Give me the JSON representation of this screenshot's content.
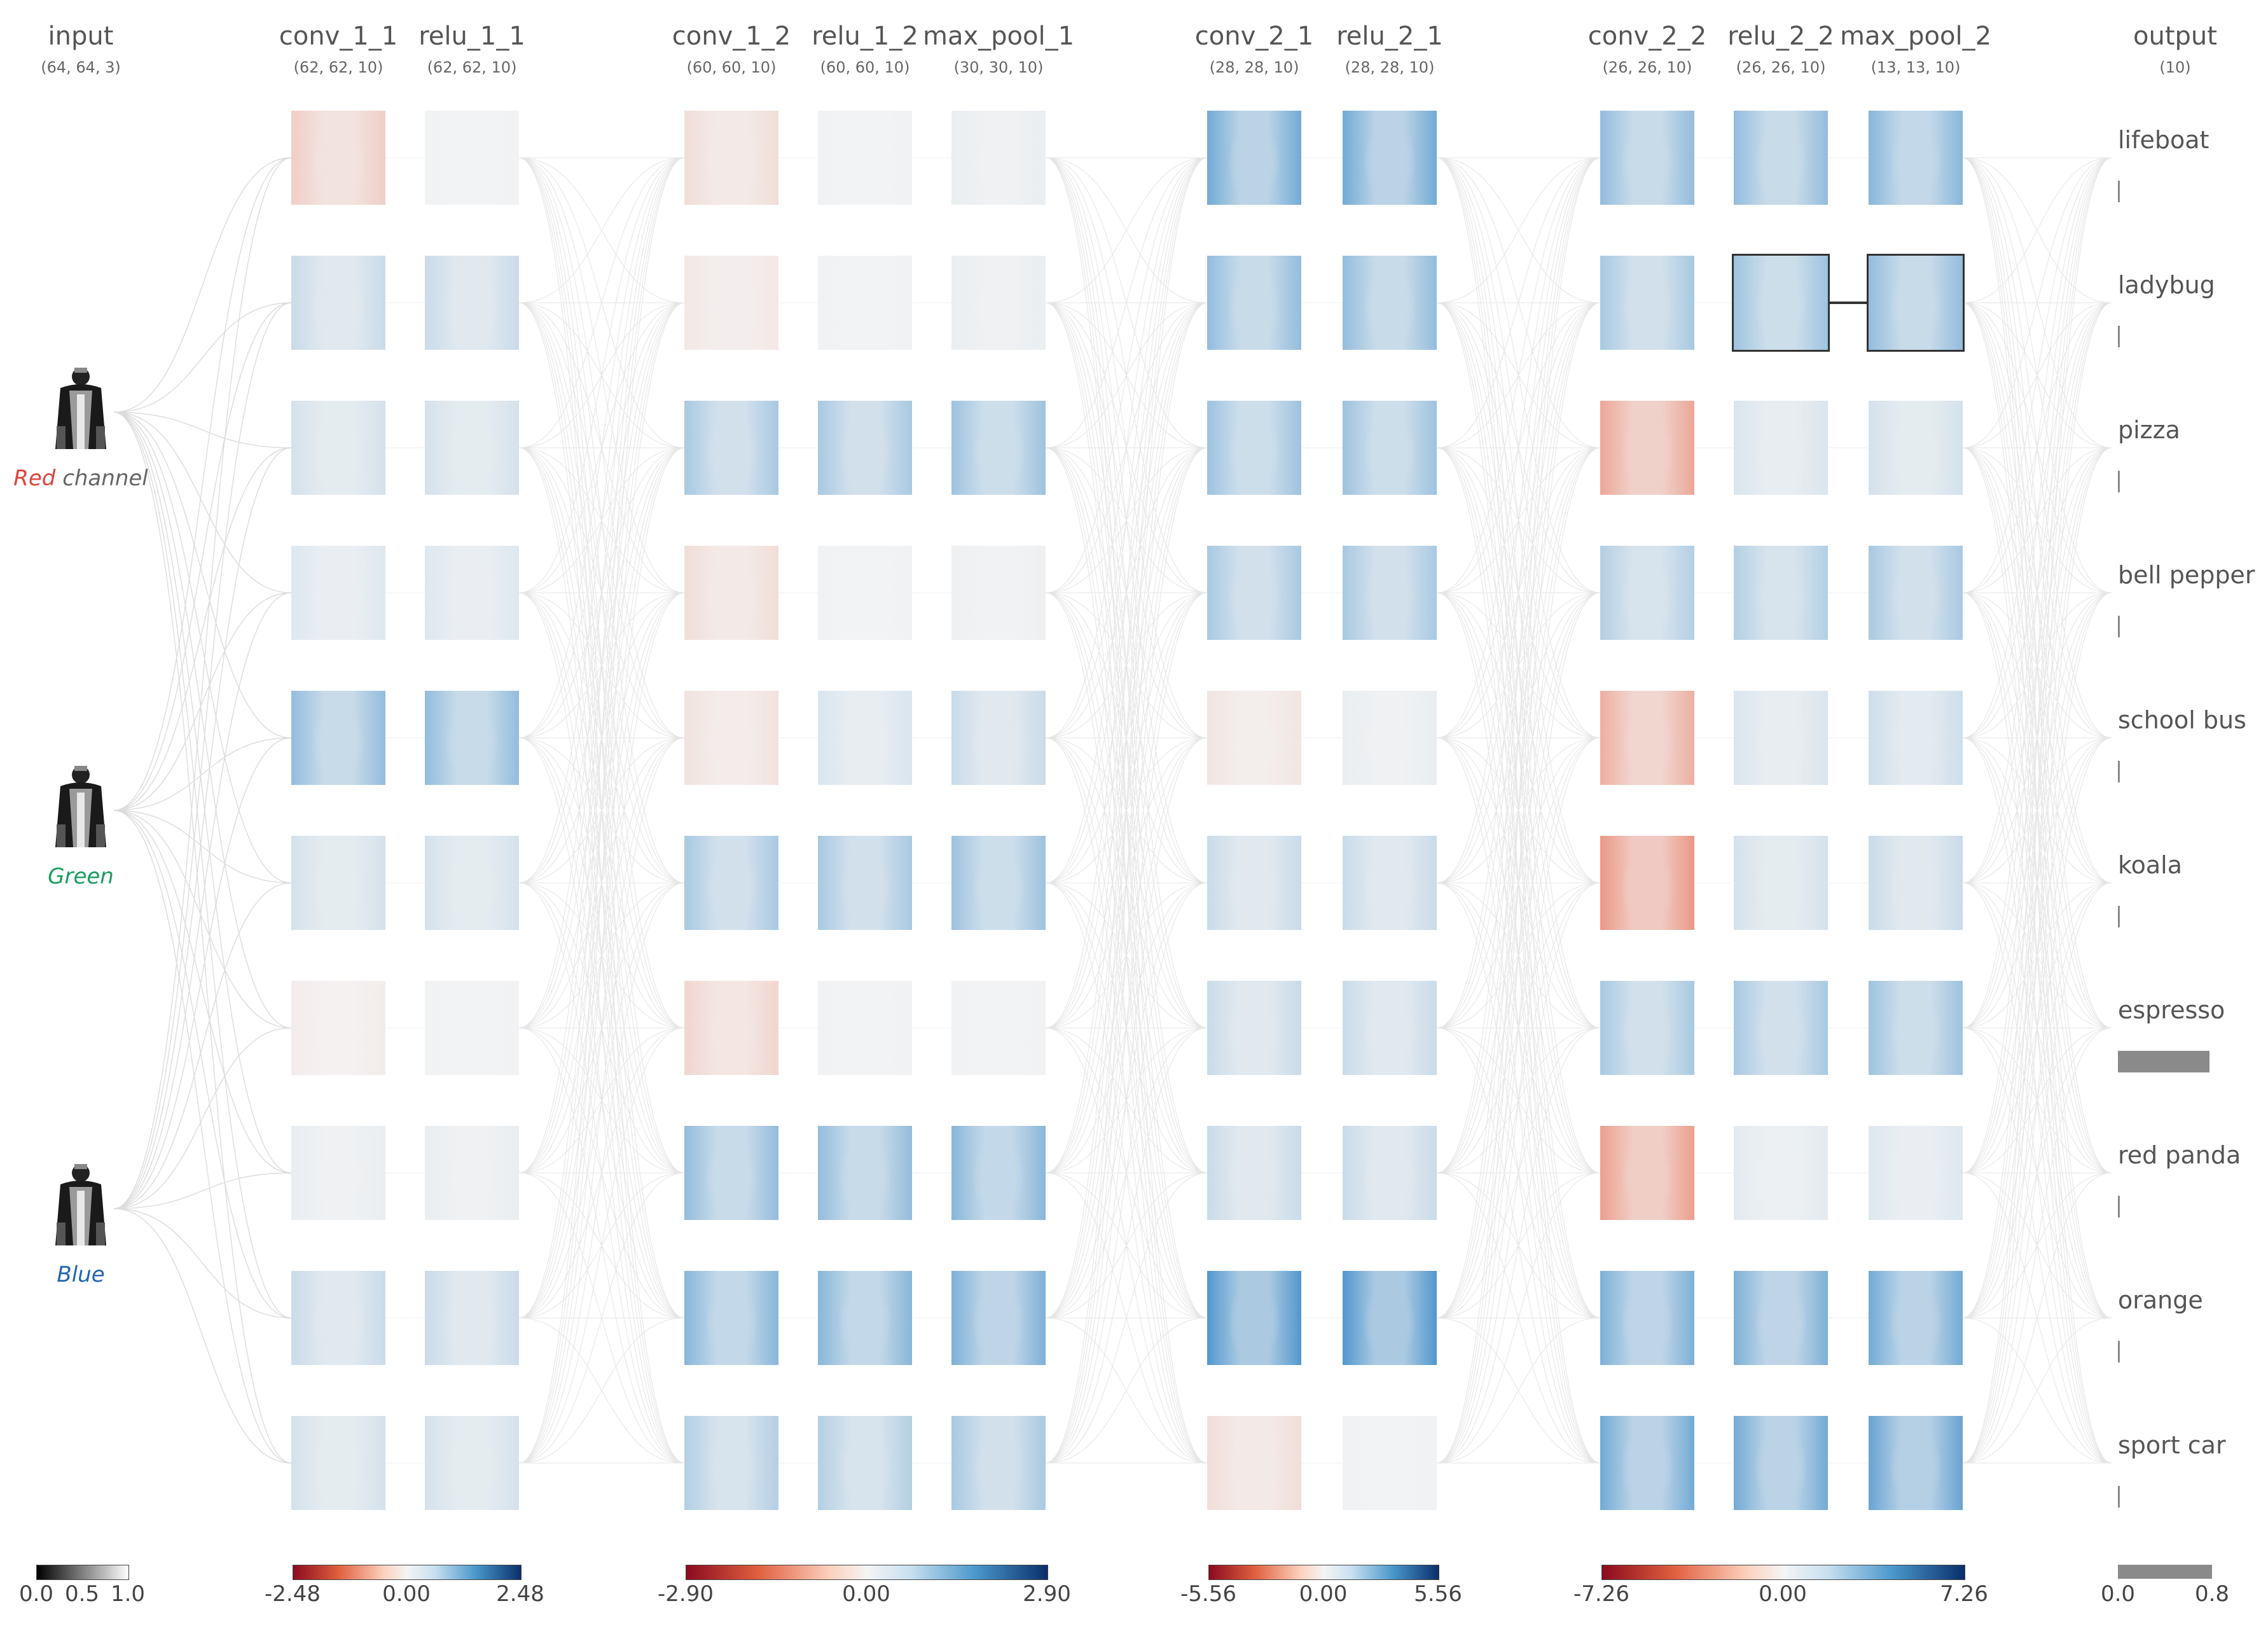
{
  "layers": [
    {
      "name": "input",
      "dim": "(64, 64, 3)"
    },
    {
      "name": "conv_1_1",
      "dim": "(62, 62, 10)"
    },
    {
      "name": "relu_1_1",
      "dim": "(62, 62, 10)"
    },
    {
      "name": "conv_1_2",
      "dim": "(60, 60, 10)"
    },
    {
      "name": "relu_1_2",
      "dim": "(60, 60, 10)"
    },
    {
      "name": "max_pool_1",
      "dim": "(30, 30, 10)"
    },
    {
      "name": "conv_2_1",
      "dim": "(28, 28, 10)"
    },
    {
      "name": "relu_2_1",
      "dim": "(28, 28, 10)"
    },
    {
      "name": "conv_2_2",
      "dim": "(26, 26, 10)"
    },
    {
      "name": "relu_2_2",
      "dim": "(26, 26, 10)"
    },
    {
      "name": "max_pool_2",
      "dim": "(13, 13, 10)"
    },
    {
      "name": "output",
      "dim": "(10)"
    }
  ],
  "input_channels": [
    {
      "label_prefix": "Red",
      "label_rest": " channel",
      "color": "#e0433c"
    },
    {
      "label_prefix": "Green",
      "label_rest": "",
      "color": "#1a9e5e"
    },
    {
      "label_prefix": "Blue",
      "label_rest": "",
      "color": "#2166ac"
    }
  ],
  "classes": [
    {
      "label": "lifeboat",
      "prob": 0.0
    },
    {
      "label": "ladybug",
      "prob": 0.0
    },
    {
      "label": "pizza",
      "prob": 0.01
    },
    {
      "label": "bell pepper",
      "prob": 0.0
    },
    {
      "label": "school bus",
      "prob": 0.01
    },
    {
      "label": "koala",
      "prob": 0.0
    },
    {
      "label": "espresso",
      "prob": 0.78
    },
    {
      "label": "red panda",
      "prob": 0.0
    },
    {
      "label": "orange",
      "prob": 0.0
    },
    {
      "label": "sport car",
      "prob": 0.0
    }
  ],
  "activations": {
    "conv_1_1": [
      -0.25,
      0.2,
      0.15,
      0.1,
      0.45,
      0.15,
      -0.05,
      0.05,
      0.2,
      0.15
    ],
    "relu_1_1": [
      0.02,
      0.2,
      0.15,
      0.1,
      0.45,
      0.15,
      0.02,
      0.05,
      0.2,
      0.15
    ],
    "conv_1_2": [
      -0.15,
      -0.08,
      0.35,
      -0.15,
      -0.12,
      0.35,
      -0.2,
      0.45,
      0.5,
      0.3
    ],
    "relu_1_2": [
      0.02,
      0.02,
      0.35,
      0.02,
      0.12,
      0.35,
      0.02,
      0.45,
      0.5,
      0.3
    ],
    "max_pool_1": [
      0.05,
      0.05,
      0.4,
      0.03,
      0.2,
      0.4,
      0.02,
      0.5,
      0.55,
      0.35
    ],
    "conv_2_1": [
      0.6,
      0.45,
      0.4,
      0.35,
      -0.1,
      0.2,
      0.2,
      0.2,
      0.75,
      -0.15
    ],
    "relu_2_1": [
      0.6,
      0.45,
      0.4,
      0.35,
      0.05,
      0.2,
      0.2,
      0.2,
      0.75,
      0.02
    ],
    "conv_2_2": [
      0.45,
      0.35,
      -0.5,
      0.3,
      -0.45,
      -0.6,
      0.35,
      -0.55,
      0.55,
      0.6
    ],
    "relu_2_2": [
      0.45,
      0.4,
      0.12,
      0.3,
      0.12,
      0.15,
      0.35,
      0.08,
      0.55,
      0.6
    ],
    "max_pool_2": [
      0.5,
      0.45,
      0.15,
      0.35,
      0.18,
      0.2,
      0.4,
      0.1,
      0.6,
      0.65
    ]
  },
  "selected": {
    "layer": "relu_2_2",
    "index": 1
  },
  "colorbars": [
    {
      "name": "input-scale",
      "gradient": "gray",
      "ticks": [
        "0.0",
        "0.5",
        "1.0"
      ]
    },
    {
      "name": "block1-scale",
      "gradient": "rdbu",
      "ticks": [
        "-2.48",
        "0.00",
        "2.48"
      ]
    },
    {
      "name": "block2-scale",
      "gradient": "rdbu",
      "ticks": [
        "-2.90",
        "0.00",
        "2.90"
      ]
    },
    {
      "name": "block3-scale",
      "gradient": "rdbu",
      "ticks": [
        "-5.56",
        "0.00",
        "5.56"
      ]
    },
    {
      "name": "block4-scale",
      "gradient": "rdbu",
      "ticks": [
        "-7.26",
        "0.00",
        "7.26"
      ]
    },
    {
      "name": "output-scale",
      "gradient": "solid",
      "ticks": [
        "0.0",
        "0.8"
      ]
    }
  ],
  "colors": {
    "positive": "#1c78c0",
    "negative": "#e45a3b",
    "neutral": "#f4f4f4",
    "edge": "#dcdcdc",
    "bar": "#8a8a8a"
  }
}
